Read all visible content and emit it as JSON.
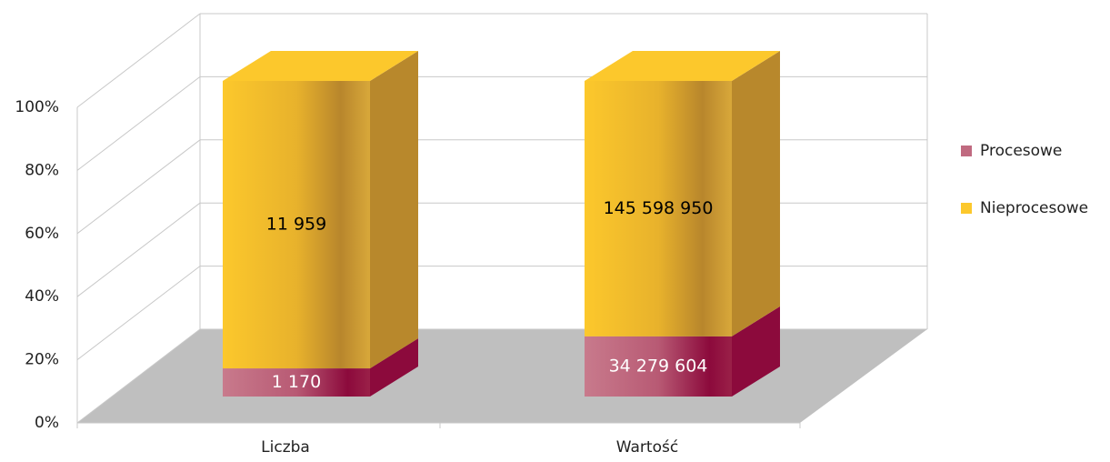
{
  "chart_data": {
    "type": "bar3d",
    "stacking": "percent",
    "categories": [
      "Liczba",
      "Wartość"
    ],
    "series": [
      {
        "name": "Procesowe",
        "color": "#c06a80",
        "side_color": "#8c0a3c",
        "values": [
          1170,
          34279604
        ],
        "value_labels": [
          "1 170",
          "34 279 604"
        ],
        "label_color": "#ffffff"
      },
      {
        "name": "Nieprocesowe",
        "color": "#fcc82c",
        "side_color": "#b8882c",
        "values": [
          11959,
          145598950
        ],
        "value_labels": [
          "11 959",
          "145 598 950"
        ],
        "label_color": "#000000"
      }
    ],
    "ylim": [
      0,
      100
    ],
    "yticks": [
      {
        "value": 0,
        "label": "0%"
      },
      {
        "value": 20,
        "label": "20%"
      },
      {
        "value": 40,
        "label": "40%"
      },
      {
        "value": 60,
        "label": "60%"
      },
      {
        "value": 80,
        "label": "80%"
      },
      {
        "value": 100,
        "label": "100%"
      }
    ],
    "grid": true,
    "legend": "right"
  }
}
